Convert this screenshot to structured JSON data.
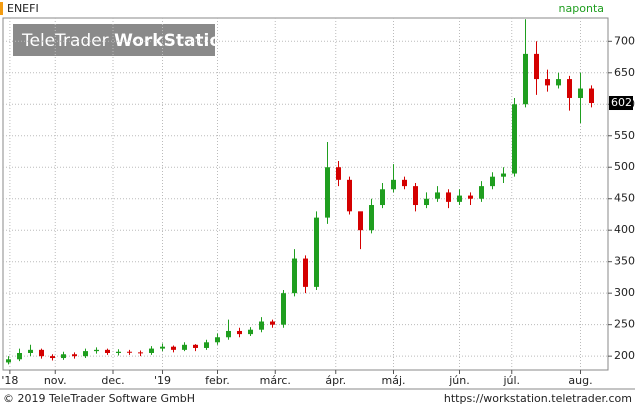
{
  "chart_data": {
    "type": "candlestick",
    "symbol": "ENEFI",
    "interval": "naponta",
    "watermark": {
      "light": "TeleTrader",
      "bold": "WorkStation"
    },
    "ylim": [
      178,
      737
    ],
    "yticks": [
      200,
      250,
      300,
      350,
      400,
      450,
      500,
      550,
      600,
      650,
      700
    ],
    "xlim": [
      0,
      220
    ],
    "xticks": [
      {
        "value": 2.5,
        "label": "'18"
      },
      {
        "value": 19,
        "label": "nov."
      },
      {
        "value": 40,
        "label": "dec."
      },
      {
        "value": 58,
        "label": "'19"
      },
      {
        "value": 78,
        "label": "febr."
      },
      {
        "value": 99,
        "label": "márc."
      },
      {
        "value": 121,
        "label": "ápr."
      },
      {
        "value": 142,
        "label": "máj."
      },
      {
        "value": 166,
        "label": "jún."
      },
      {
        "value": 185,
        "label": "júl."
      },
      {
        "value": 210,
        "label": "aug."
      }
    ],
    "grid": true,
    "up_color": "#1f9e1f",
    "down_color": "#d40000",
    "candles": {
      "x": [
        2,
        6,
        10,
        14,
        18,
        22,
        26,
        30,
        34,
        38,
        42,
        46,
        50,
        54,
        58,
        62,
        66,
        70,
        74,
        78,
        82,
        86,
        90,
        94,
        98,
        102,
        106,
        110,
        114,
        118,
        122,
        126,
        130,
        134,
        138,
        142,
        146,
        150,
        154,
        158,
        162,
        166,
        170,
        174,
        178,
        182,
        186,
        190,
        194,
        198,
        202,
        206,
        210,
        214
      ],
      "open": [
        190,
        195,
        205,
        210,
        200,
        197,
        203,
        200,
        208,
        210,
        205,
        207,
        206,
        205,
        212,
        215,
        210,
        218,
        213,
        222,
        230,
        240,
        235,
        242,
        255,
        250,
        300,
        355,
        310,
        420,
        500,
        480,
        430,
        400,
        440,
        465,
        480,
        470,
        440,
        450,
        460,
        445,
        455,
        450,
        470,
        485,
        490,
        600,
        680,
        640,
        630,
        640,
        610,
        625
      ],
      "high": [
        200,
        212,
        218,
        212,
        203,
        207,
        206,
        212,
        214,
        212,
        211,
        210,
        209,
        216,
        220,
        217,
        222,
        219,
        226,
        236,
        258,
        245,
        246,
        262,
        258,
        305,
        370,
        360,
        430,
        540,
        510,
        485,
        420,
        450,
        475,
        505,
        485,
        475,
        460,
        470,
        465,
        465,
        460,
        478,
        492,
        500,
        610,
        735,
        700,
        655,
        650,
        645,
        650,
        630
      ],
      "low": [
        187,
        192,
        200,
        196,
        193,
        194,
        196,
        197,
        204,
        202,
        201,
        202,
        200,
        202,
        208,
        206,
        208,
        208,
        210,
        218,
        226,
        230,
        232,
        238,
        245,
        245,
        295,
        300,
        305,
        410,
        470,
        425,
        370,
        395,
        435,
        460,
        465,
        430,
        435,
        445,
        435,
        440,
        440,
        445,
        465,
        475,
        485,
        595,
        615,
        620,
        625,
        590,
        570,
        595
      ],
      "close": [
        195,
        205,
        210,
        200,
        197,
        203,
        200,
        208,
        210,
        205,
        207,
        206,
        205,
        212,
        215,
        210,
        218,
        213,
        222,
        230,
        240,
        235,
        242,
        255,
        250,
        300,
        355,
        310,
        420,
        500,
        480,
        430,
        400,
        440,
        465,
        480,
        470,
        440,
        450,
        460,
        445,
        455,
        450,
        470,
        485,
        490,
        600,
        680,
        640,
        630,
        640,
        610,
        625,
        602
      ]
    }
  },
  "footer": {
    "left": "© 2019 TeleTrader Software GmbH",
    "right": "https://workstation.teletrader.com"
  }
}
